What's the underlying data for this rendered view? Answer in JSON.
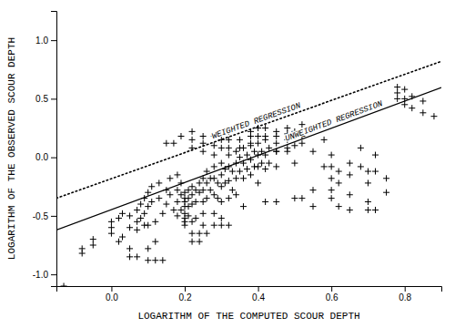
{
  "chart_data": {
    "type": "scatter",
    "xlabel": "LOGARITHM OF THE COMPUTED SCOUR DEPTH",
    "ylabel": "LOGARITHM OF THE OBSERVED SCOUR DEPTH",
    "xlim": [
      -0.15,
      0.9
    ],
    "ylim": [
      -1.1,
      1.25
    ],
    "xticks": [
      {
        "value": 0.0,
        "label": "0.0"
      },
      0.2,
      0.4,
      0.6,
      0.8
    ],
    "yticks": [
      {
        "value": -1.0,
        "label": "-1.0"
      },
      -0.5,
      {
        "value": 0.0,
        "label": "0.0"
      },
      0.5,
      {
        "value": 1.0,
        "label": "1.0"
      }
    ],
    "series": [
      {
        "type": "scatter",
        "marker": "plus",
        "color": "#000000",
        "x": [
          -0.13,
          -0.08,
          -0.08,
          -0.05,
          -0.05,
          0.0,
          0.0,
          0.0,
          0.02,
          0.02,
          0.03,
          0.03,
          0.05,
          0.05,
          0.05,
          0.05,
          0.07,
          0.07,
          0.07,
          0.07,
          0.08,
          0.08,
          0.09,
          0.09,
          0.09,
          0.1,
          0.1,
          0.1,
          0.1,
          0.1,
          0.12,
          0.14,
          0.11,
          0.11,
          0.12,
          0.12,
          0.13,
          0.13,
          0.14,
          0.15,
          0.15,
          0.15,
          0.17,
          0.19,
          0.16,
          0.16,
          0.17,
          0.18,
          0.18,
          0.18,
          0.18,
          0.19,
          0.19,
          0.19,
          0.2,
          0.2,
          0.2,
          0.2,
          0.2,
          0.2,
          0.2,
          0.2,
          0.22,
          0.21,
          0.21,
          0.21,
          0.21,
          0.22,
          0.22,
          0.22,
          0.22,
          0.24,
          0.26,
          0.22,
          0.24,
          0.22,
          0.22,
          0.22,
          0.23,
          0.23,
          0.23,
          0.24,
          0.24,
          0.25,
          0.25,
          0.25,
          0.25,
          0.25,
          0.25,
          0.25,
          0.25,
          0.26,
          0.26,
          0.26,
          0.27,
          0.27,
          0.28,
          0.28,
          0.28,
          0.28,
          0.28,
          0.3,
          0.32,
          0.28,
          0.28,
          0.28,
          0.29,
          0.29,
          0.3,
          0.3,
          0.3,
          0.3,
          0.3,
          0.3,
          0.3,
          0.31,
          0.31,
          0.32,
          0.32,
          0.32,
          0.32,
          0.32,
          0.32,
          0.32,
          0.33,
          0.33,
          0.34,
          0.34,
          0.34,
          0.34,
          0.35,
          0.35,
          0.35,
          0.35,
          0.36,
          0.36,
          0.36,
          0.36,
          0.37,
          0.37,
          0.38,
          0.38,
          0.38,
          0.38,
          0.38,
          0.38,
          0.39,
          0.39,
          0.4,
          0.4,
          0.4,
          0.4,
          0.4,
          0.4,
          0.41,
          0.41,
          0.42,
          0.42,
          0.42,
          0.42,
          0.45,
          0.42,
          0.42,
          0.43,
          0.43,
          0.45,
          0.45,
          0.45,
          0.45,
          0.45,
          0.45,
          0.48,
          0.48,
          0.48,
          0.48,
          0.48,
          0.5,
          0.5,
          0.5,
          0.5,
          0.52,
          0.5,
          0.52,
          0.52,
          0.52,
          0.55,
          0.55,
          0.55,
          0.55,
          0.58,
          0.58,
          0.6,
          0.6,
          0.6,
          0.6,
          0.6,
          0.62,
          0.62,
          0.62,
          0.65,
          0.65,
          0.65,
          0.65,
          0.68,
          0.68,
          0.7,
          0.7,
          0.7,
          0.7,
          0.72,
          0.72,
          0.72,
          0.75,
          0.75,
          0.78,
          0.78,
          0.78,
          0.8,
          0.8,
          0.8,
          0.82,
          0.82,
          0.85,
          0.85,
          0.88
        ],
        "values": [
          -1.1,
          -0.78,
          -0.82,
          -0.7,
          -0.75,
          -0.55,
          -0.6,
          -0.65,
          -0.72,
          -0.52,
          -0.48,
          -0.68,
          -0.5,
          -0.6,
          -0.78,
          -0.85,
          -0.85,
          -0.45,
          -0.55,
          -0.62,
          -0.4,
          -0.52,
          -0.35,
          -0.48,
          -0.58,
          -0.3,
          -0.42,
          -0.58,
          -0.78,
          -0.88,
          -0.88,
          -0.88,
          -0.25,
          -0.38,
          -0.55,
          -0.72,
          -0.22,
          -0.35,
          -0.48,
          -0.28,
          -0.4,
          0.12,
          0.12,
          0.18,
          -0.18,
          -0.32,
          -0.45,
          -0.15,
          -0.28,
          -0.38,
          -0.5,
          -0.22,
          -0.32,
          -0.45,
          -0.3,
          -0.35,
          -0.38,
          -0.42,
          -0.48,
          -0.52,
          -0.58,
          -0.55,
          -0.55,
          -0.28,
          -0.35,
          -0.42,
          -0.5,
          -0.25,
          -0.32,
          -0.4,
          -0.65,
          -0.65,
          -0.65,
          -0.72,
          -0.72,
          0.08,
          0.15,
          0.22,
          -0.28,
          -0.38,
          -0.52,
          -0.22,
          -0.3,
          -0.18,
          -0.28,
          -0.38,
          -0.48,
          -0.58,
          0.05,
          0.12,
          0.18,
          -0.12,
          -0.22,
          -0.35,
          -0.18,
          -0.28,
          -0.08,
          -0.18,
          -0.32,
          -0.48,
          -0.58,
          -0.58,
          -0.58,
          0.02,
          0.1,
          0.18,
          -0.22,
          -0.35,
          -0.05,
          -0.15,
          -0.25,
          -0.38,
          -0.52,
          0.08,
          0.15,
          -0.1,
          -0.22,
          0.02,
          -0.08,
          -0.2,
          -0.35,
          0.08,
          0.15,
          0.22,
          -0.12,
          -0.28,
          0.05,
          -0.05,
          -0.18,
          -0.32,
          0.0,
          -0.12,
          0.08,
          0.15,
          0.08,
          -0.05,
          -0.18,
          -0.42,
          0.02,
          -0.1,
          0.1,
          -0.02,
          -0.15,
          0.12,
          0.18,
          0.22,
          0.05,
          -0.08,
          0.12,
          0.02,
          -0.08,
          -0.22,
          0.18,
          0.25,
          0.05,
          -0.05,
          0.15,
          0.02,
          -0.1,
          -0.38,
          -0.38,
          0.18,
          0.25,
          0.08,
          -0.05,
          0.18,
          0.05,
          -0.08,
          0.12,
          0.22,
          0.05,
          0.05,
          0.2,
          0.08,
          0.15,
          0.25,
          0.22,
          0.1,
          -0.05,
          -0.35,
          -0.35,
          0.18,
          0.12,
          0.18,
          0.28,
          0.25,
          0.05,
          -0.42,
          -0.28,
          0.15,
          -0.08,
          0.02,
          -0.08,
          -0.18,
          -0.28,
          -0.35,
          -0.42,
          -0.12,
          -0.22,
          -0.05,
          -0.15,
          -0.32,
          -0.45,
          0.08,
          -0.08,
          -0.12,
          -0.22,
          -0.38,
          -0.45,
          -0.45,
          0.02,
          -0.12,
          -0.18,
          -0.3,
          0.5,
          0.55,
          0.6,
          0.45,
          0.5,
          0.58,
          0.42,
          0.52,
          0.38,
          0.48,
          0.35
        ]
      },
      {
        "type": "line",
        "name": "UNWEIGHTED REGRESSION",
        "line_style": "solid",
        "color": "#000000",
        "x": [
          -0.15,
          0.9
        ],
        "values": [
          -0.62,
          0.595
        ]
      },
      {
        "type": "line",
        "name": "WEIGHTED REGRESSION",
        "line_style": "dotted",
        "color": "#000000",
        "x": [
          -0.15,
          0.9
        ],
        "values": [
          -0.35,
          0.82
        ]
      }
    ]
  }
}
